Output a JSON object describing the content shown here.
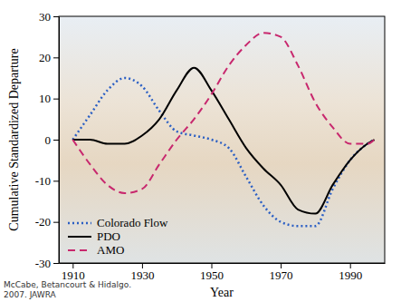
{
  "chart_data": {
    "type": "line",
    "x_label": "Year",
    "y_label": "Cumulative Standardized Departure",
    "annotations": [
      "McCabe, Betancourt & Hidalgo.",
      "2007. JAWRA"
    ],
    "x": [
      1910,
      1915,
      1920,
      1925,
      1930,
      1935,
      1940,
      1945,
      1950,
      1955,
      1960,
      1965,
      1970,
      1975,
      1980,
      1985,
      1990,
      1995,
      1997
    ],
    "series": [
      {
        "name": "Colorado Flow",
        "color": "#2b5fc4",
        "line_style": "dotted",
        "values": [
          0,
          6,
          12,
          15,
          13,
          7,
          2,
          1,
          0,
          -2,
          -9,
          -16,
          -20,
          -21,
          -21,
          -12,
          -5,
          -1,
          0
        ]
      },
      {
        "name": "PDO",
        "color": "#000000",
        "line_style": "solid",
        "values": [
          0,
          0,
          -1,
          -1,
          1,
          5,
          12,
          17.5,
          12,
          5,
          -2,
          -7,
          -11,
          -17,
          -18,
          -11,
          -5,
          -1,
          0
        ]
      },
      {
        "name": "AMO",
        "color": "#c8286e",
        "line_style": "dashed",
        "values": [
          0,
          -6,
          -11,
          -13,
          -12,
          -6,
          0,
          5,
          11,
          18,
          23,
          26,
          25,
          18,
          9,
          3,
          -1,
          -1,
          0
        ]
      }
    ],
    "xlim": [
      1906,
      2000
    ],
    "xticks": [
      1910,
      1930,
      1950,
      1970,
      1990
    ],
    "ylim": [
      -30,
      30
    ],
    "yticks": [
      -30,
      -20,
      -10,
      0,
      10,
      20,
      30
    ],
    "grid": false,
    "legend": "lower left"
  }
}
